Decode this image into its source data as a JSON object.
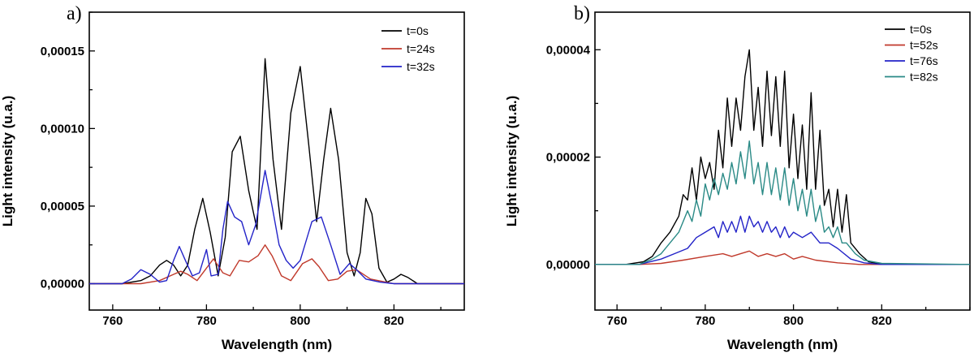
{
  "chart_data": [
    {
      "type": "line",
      "panel_label": "a)",
      "xlabel": "Wavelength (nm)",
      "ylabel": "Light intensity (u.a.)",
      "xlim": [
        755,
        835
      ],
      "ylim": [
        -1.7e-05,
        0.000175
      ],
      "xticks": [
        760,
        780,
        800,
        820
      ],
      "yticks": [
        0,
        5e-05,
        0.0001,
        0.00015
      ],
      "ytick_labels": [
        "0,00000",
        "0,00005",
        "0,00010",
        "0,00015"
      ],
      "legend_position": "top-right",
      "series": [
        {
          "name": "t=0s",
          "color": "#000000",
          "x": [
            755,
            762,
            766,
            768,
            770,
            771.5,
            773,
            774.5,
            776,
            777.5,
            779.2,
            780.8,
            782.5,
            784,
            785.5,
            787.2,
            789,
            790.8,
            792.5,
            794.2,
            796,
            798,
            800,
            801.8,
            803.5,
            805,
            806.5,
            808.2,
            810,
            811.5,
            812.8,
            814,
            815.3,
            816.8,
            818.5,
            820,
            821.5,
            823,
            825,
            835
          ],
          "y": [
            0,
            0,
            2e-06,
            5e-06,
            1.2e-05,
            1.5e-05,
            1.2e-05,
            5e-06,
            1.2e-05,
            3.5e-05,
            5.5e-05,
            3.3e-05,
            5e-06,
            3e-05,
            8.5e-05,
            9.5e-05,
            6e-05,
            3.5e-05,
            0.000145,
            8e-05,
            3.5e-05,
            0.00011,
            0.00014,
            9e-05,
            4e-05,
            8e-05,
            0.000113,
            8e-05,
            2e-05,
            5e-06,
            2e-05,
            5.5e-05,
            4.5e-05,
            1e-05,
            1e-06,
            3e-06,
            6e-06,
            4e-06,
            0,
            0
          ]
        },
        {
          "name": "t=24s",
          "color": "#c0392b",
          "x": [
            755,
            766,
            770,
            773,
            774.5,
            776,
            778,
            779.5,
            781.5,
            783.5,
            785,
            787,
            789,
            791,
            792.5,
            794,
            796,
            798,
            800.5,
            802.5,
            804,
            806,
            808,
            810,
            812,
            815,
            820,
            835
          ],
          "y": [
            0,
            0,
            2e-06,
            6e-06,
            8e-06,
            6e-06,
            2e-06,
            8e-06,
            1.6e-05,
            7e-06,
            5e-06,
            1.5e-05,
            1.4e-05,
            1.8e-05,
            2.5e-05,
            1.8e-05,
            5e-06,
            2e-06,
            1.3e-05,
            1.6e-05,
            1.1e-05,
            2e-06,
            3e-06,
            8e-06,
            9e-06,
            3e-06,
            0,
            0
          ]
        },
        {
          "name": "t=32s",
          "color": "#2323c8",
          "x": [
            755,
            762,
            764,
            766,
            768,
            770,
            771.5,
            773,
            774.2,
            775.5,
            777,
            778.5,
            780,
            781,
            782.5,
            783.5,
            784.5,
            786,
            787.5,
            789,
            790.5,
            792.5,
            794,
            795.5,
            797,
            798.5,
            800,
            802.5,
            804.5,
            806.5,
            808.5,
            810.5,
            812,
            814,
            817,
            820,
            835
          ],
          "y": [
            0,
            0,
            3e-06,
            9e-06,
            6e-06,
            1e-06,
            2e-06,
            1.5e-05,
            2.4e-05,
            1.5e-05,
            5e-06,
            7e-06,
            2.2e-05,
            5e-06,
            6e-06,
            3.5e-05,
            5.3e-05,
            4.3e-05,
            4e-05,
            2.5e-05,
            3.8e-05,
            7.3e-05,
            5e-05,
            2.5e-05,
            1.5e-05,
            1e-05,
            1.5e-05,
            4e-05,
            4.3e-05,
            2.5e-05,
            6e-06,
            1.3e-05,
            9e-06,
            3e-06,
            1e-06,
            0,
            0
          ]
        }
      ]
    },
    {
      "type": "line",
      "panel_label": "b)",
      "xlabel": "Wavelength (nm)",
      "ylabel": "Light intensity (u.a.)",
      "xlim": [
        755,
        840
      ],
      "ylim": [
        -8.5e-06,
        4.7e-05
      ],
      "xticks": [
        760,
        780,
        800,
        820
      ],
      "yticks": [
        0,
        2e-05,
        4e-05
      ],
      "ytick_labels": [
        "0,00000",
        "0,00002",
        "0,00004"
      ],
      "legend_position": "top-right",
      "series": [
        {
          "name": "t=0s",
          "color": "#000000",
          "x": [
            755,
            762,
            766,
            768,
            770,
            772,
            774,
            775,
            776,
            777,
            778,
            779,
            780,
            781,
            782,
            783,
            784,
            785,
            786,
            787,
            788,
            789,
            790,
            791,
            792,
            793,
            794,
            795,
            796,
            797,
            798,
            799,
            800,
            801,
            802,
            803,
            804,
            805,
            806,
            807,
            808,
            809,
            810,
            811,
            812,
            813,
            815,
            817,
            820,
            825,
            840
          ],
          "y": [
            0,
            0,
            5e-07,
            1.5e-06,
            4e-06,
            6e-06,
            9e-06,
            1.3e-05,
            1.2e-05,
            1.8e-05,
            1.2e-05,
            2e-05,
            1.6e-05,
            1.9e-05,
            1.4e-05,
            2.5e-05,
            1.8e-05,
            3.1e-05,
            2.2e-05,
            3.1e-05,
            2.5e-05,
            3.5e-05,
            4e-05,
            2.5e-05,
            3.3e-05,
            2.2e-05,
            3.6e-05,
            2.4e-05,
            3.5e-05,
            2.2e-05,
            3.6e-05,
            1.8e-05,
            2.8e-05,
            1.6e-05,
            2.6e-05,
            1.4e-05,
            3.2e-05,
            1.4e-05,
            2.5e-05,
            1.1e-05,
            1.4e-05,
            7e-06,
            1.4e-05,
            6e-06,
            1.3e-05,
            4e-06,
            2e-06,
            5e-07,
            0,
            0,
            0
          ]
        },
        {
          "name": "t=52s",
          "color": "#c0392b",
          "x": [
            755,
            765,
            770,
            775,
            780,
            784,
            786,
            788,
            790,
            792,
            794,
            796,
            798,
            800,
            802,
            805,
            810,
            815,
            820,
            840
          ],
          "y": [
            0,
            0,
            2e-07,
            8e-07,
            1.5e-06,
            2e-06,
            1.5e-06,
            2e-06,
            2.5e-06,
            1.5e-06,
            2e-06,
            1.5e-06,
            2e-06,
            1e-06,
            1.5e-06,
            8e-07,
            3e-07,
            0,
            0,
            0
          ]
        },
        {
          "name": "t=76s",
          "color": "#2323c8",
          "x": [
            755,
            765,
            770,
            773,
            776,
            778,
            780,
            782,
            783,
            784,
            785,
            786,
            787,
            788,
            789,
            790,
            791,
            792,
            793,
            794,
            795,
            796,
            797,
            798,
            799,
            800,
            802,
            804,
            806,
            808,
            810,
            813,
            816,
            820,
            840
          ],
          "y": [
            0,
            0,
            1e-06,
            2e-06,
            3e-06,
            5e-06,
            6e-06,
            7e-06,
            5e-06,
            8e-06,
            6e-06,
            8e-06,
            6e-06,
            9e-06,
            6e-06,
            9e-06,
            7e-06,
            8e-06,
            6e-06,
            8e-06,
            6e-06,
            7e-06,
            5e-06,
            7e-06,
            5e-06,
            6e-06,
            5e-06,
            6e-06,
            4e-06,
            4e-06,
            3e-06,
            1e-06,
            3e-07,
            0,
            0
          ]
        },
        {
          "name": "t=82s",
          "color": "#2a8a86",
          "x": [
            755,
            765,
            768,
            770,
            772,
            774,
            776,
            777,
            778,
            779,
            780,
            781,
            782,
            783,
            784,
            785,
            786,
            787,
            788,
            789,
            790,
            791,
            792,
            793,
            794,
            795,
            796,
            797,
            798,
            799,
            800,
            801,
            802,
            803,
            804,
            805,
            806,
            807,
            808,
            809,
            810,
            811,
            812,
            814,
            816,
            820,
            840
          ],
          "y": [
            0,
            0,
            1e-06,
            2e-06,
            4e-06,
            6e-06,
            1e-05,
            8e-06,
            1.2e-05,
            9e-06,
            1.5e-05,
            1.2e-05,
            1.6e-05,
            1.3e-05,
            1.7e-05,
            1.4e-05,
            1.9e-05,
            1.5e-05,
            2.1e-05,
            1.6e-05,
            2.3e-05,
            1.5e-05,
            1.9e-05,
            1.3e-05,
            1.9e-05,
            1.3e-05,
            1.8e-05,
            1.2e-05,
            1.8e-05,
            1.1e-05,
            1.6e-05,
            1e-05,
            1.4e-05,
            9e-06,
            1.4e-05,
            8e-06,
            1.1e-05,
            6e-06,
            7e-06,
            5e-06,
            7e-06,
            4e-06,
            4e-06,
            2e-06,
            8e-07,
            2e-07,
            0
          ]
        }
      ]
    }
  ]
}
